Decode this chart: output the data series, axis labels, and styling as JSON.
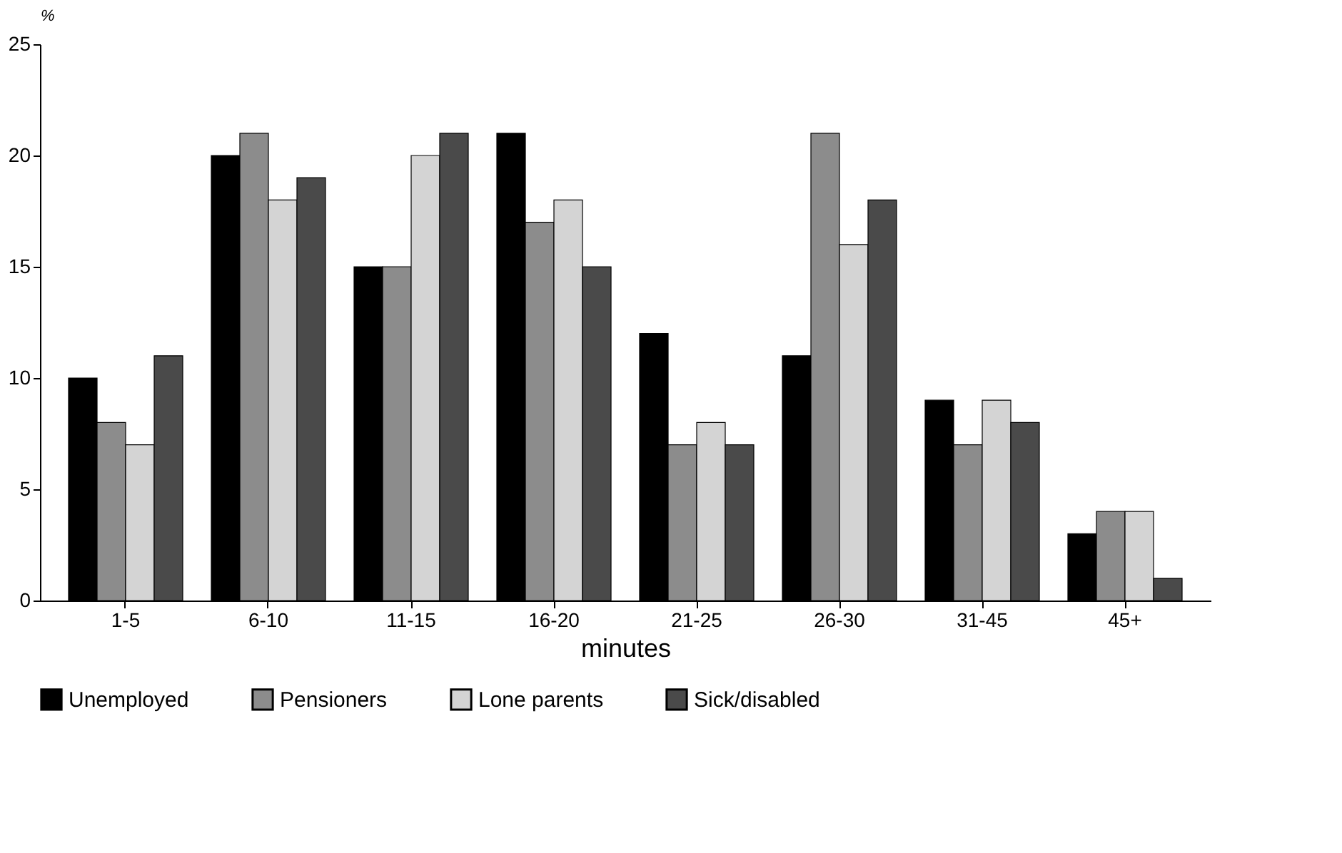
{
  "chart_data": {
    "type": "bar",
    "xlabel": "minutes",
    "ylabel": "%",
    "categories": [
      "1-5",
      "6-10",
      "11-15",
      "16-20",
      "21-25",
      "26-30",
      "31-45",
      "45+"
    ],
    "series": [
      {
        "name": "Unemployed",
        "color": "#000000",
        "values": [
          10,
          20,
          15,
          21,
          12,
          11,
          9,
          3
        ]
      },
      {
        "name": "Pensioners",
        "color": "#8c8c8c",
        "values": [
          8,
          21,
          15,
          17,
          7,
          21,
          7,
          4
        ]
      },
      {
        "name": "Lone parents",
        "color": "#d4d4d4",
        "values": [
          7,
          18,
          20,
          18,
          8,
          16,
          9,
          4
        ]
      },
      {
        "name": "Sick/disabled",
        "color": "#4a4a4a",
        "values": [
          11,
          19,
          21,
          15,
          7,
          18,
          8,
          1
        ]
      }
    ],
    "ylim": [
      0,
      25
    ],
    "yticks": [
      0,
      5,
      10,
      15,
      20,
      25
    ],
    "grid": false,
    "legend": "bottom"
  }
}
